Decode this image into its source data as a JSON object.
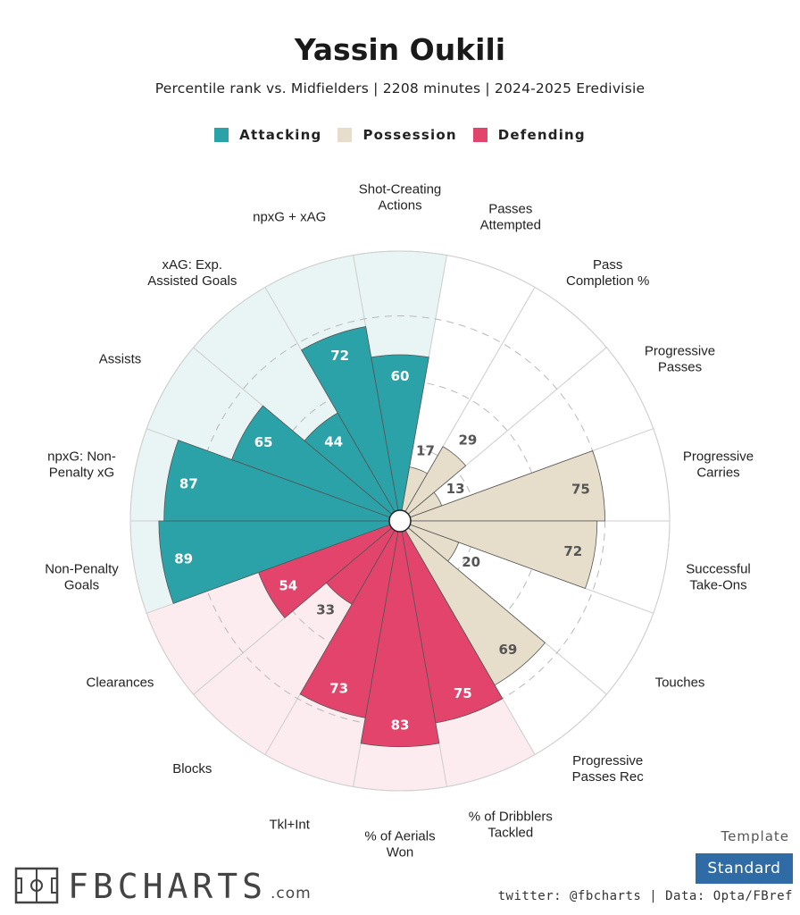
{
  "header": {
    "title": "Yassin Oukili",
    "subtitle": "Percentile rank vs. Midfielders | 2208 minutes | 2024-2025 Eredivisie"
  },
  "legend": [
    {
      "label": "Attacking",
      "color": "#2aa2a8"
    },
    {
      "label": "Possession",
      "color": "#e6ddcb"
    },
    {
      "label": "Defending",
      "color": "#e2446c"
    }
  ],
  "chart_data": {
    "type": "radar-bar",
    "range": [
      0,
      100
    ],
    "series": [
      {
        "metric": "Shot-Creating Actions",
        "value": 60,
        "group": "Attacking"
      },
      {
        "metric": "Passes Attempted",
        "value": 17,
        "group": "Possession"
      },
      {
        "metric": "Pass Completion %",
        "value": 29,
        "group": "Possession"
      },
      {
        "metric": "Progressive Passes",
        "value": 13,
        "group": "Possession"
      },
      {
        "metric": "Progressive Carries",
        "value": 75,
        "group": "Possession"
      },
      {
        "metric": "Successful Take-Ons",
        "value": 72,
        "group": "Possession"
      },
      {
        "metric": "Touches",
        "value": 20,
        "group": "Possession"
      },
      {
        "metric": "Progressive Passes Rec",
        "value": 69,
        "group": "Possession"
      },
      {
        "metric": "% of Dribblers Tackled",
        "value": 75,
        "group": "Defending"
      },
      {
        "metric": "% of Aerials Won",
        "value": 83,
        "group": "Defending"
      },
      {
        "metric": "Tkl+Int",
        "value": 73,
        "group": "Defending"
      },
      {
        "metric": "Blocks",
        "value": 33,
        "group": "Defending"
      },
      {
        "metric": "Clearances",
        "value": 54,
        "group": "Defending"
      },
      {
        "metric": "Non-Penalty Goals",
        "value": 89,
        "group": "Attacking"
      },
      {
        "metric": "npxG: Non-Penalty xG",
        "value": 87,
        "group": "Attacking"
      },
      {
        "metric": "Assists",
        "value": 65,
        "group": "Attacking"
      },
      {
        "metric": "xAG: Exp. Assisted Goals",
        "value": 44,
        "group": "Attacking"
      },
      {
        "metric": "npxG + xAG",
        "value": 72,
        "group": "Attacking"
      }
    ],
    "axis_labels": [
      [
        "Shot-Creating",
        "Actions"
      ],
      [
        "Passes",
        "Attempted"
      ],
      [
        "Pass",
        "Completion %"
      ],
      [
        "Progressive",
        "Passes"
      ],
      [
        "Progressive",
        "Carries"
      ],
      [
        "Successful",
        "Take-Ons"
      ],
      [
        "Touches"
      ],
      [
        "Progressive",
        "Passes Rec"
      ],
      [
        "% of Dribblers",
        "Tackled"
      ],
      [
        "% of Aerials",
        "Won"
      ],
      [
        "Tkl+Int"
      ],
      [
        "Blocks"
      ],
      [
        "Clearances"
      ],
      [
        "Non-Penalty",
        "Goals"
      ],
      [
        "npxG: Non-",
        "Penalty xG"
      ],
      [
        "Assists"
      ],
      [
        "xAG: Exp.",
        "Assisted Goals"
      ],
      [
        "npxG + xAG"
      ]
    ],
    "group_colors": {
      "Attacking": {
        "bar": "#2aa2a8",
        "bg": "#e9f5f5",
        "text_inside": "#ffffff"
      },
      "Possession": {
        "bar": "#e6ddcb",
        "bg": "#ffffff",
        "text_inside": "#555555"
      },
      "Defending": {
        "bar": "#e2446c",
        "bg": "#fcecef",
        "text_inside": "#ffffff"
      }
    },
    "grid_percentiles": [
      25,
      50,
      75
    ]
  },
  "footer": {
    "logo_text": "FBCHARTS",
    "logo_domain": ".com",
    "template_label": "Template",
    "template_value": "Standard",
    "credits": "twitter: @fbcharts | Data: Opta/FBref"
  }
}
